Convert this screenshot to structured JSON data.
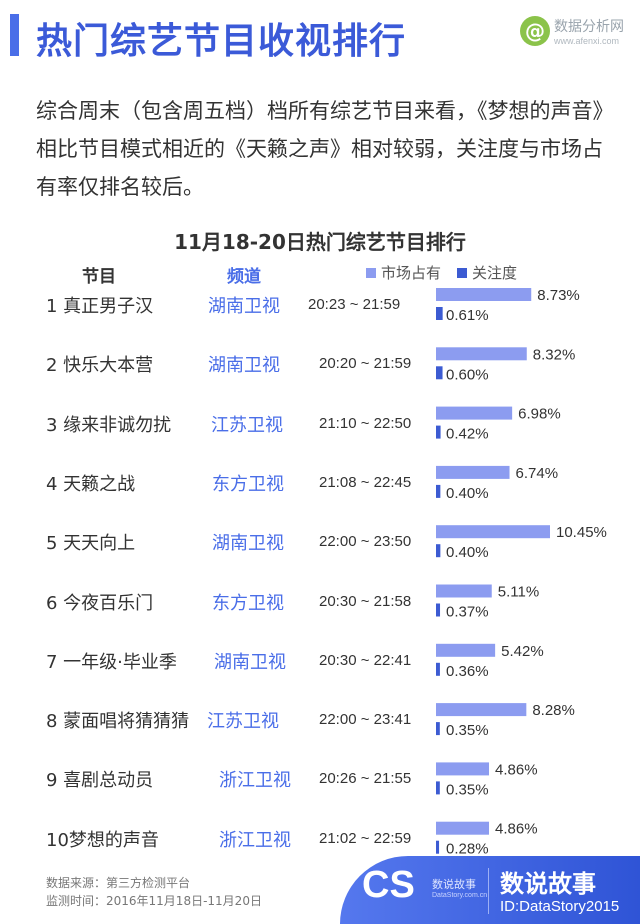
{
  "header": {
    "title": "热门综艺节目收视排行",
    "logo_name": "数据分析网",
    "logo_url": "www.afenxi.com"
  },
  "intro_text": "综合周末（包含周五档）档所有综艺节目来看，《梦想的声音》相比节目模式相近的《天籁之声》相对较弱，关注度与市场占有率仅排名较后。",
  "chart_data": {
    "type": "bar",
    "title": "11月18-20日热门综艺节目排行",
    "column_headers": {
      "program": "节目",
      "channel": "频道"
    },
    "series": [
      {
        "name": "市场占有",
        "color": "#8c9cf0",
        "values": [
          8.73,
          8.32,
          6.98,
          6.74,
          10.45,
          5.11,
          5.42,
          8.28,
          4.86,
          4.86
        ]
      },
      {
        "name": "关注度",
        "color": "#3c5bd2",
        "values": [
          0.61,
          0.6,
          0.42,
          0.4,
          0.4,
          0.37,
          0.36,
          0.35,
          0.35,
          0.28
        ]
      }
    ],
    "rows": [
      {
        "rank_name": "1 真正男子汉",
        "channel": "湖南卫视",
        "time": "20:23 ~ 21:59",
        "share": "8.73%",
        "attention": "0.61%"
      },
      {
        "rank_name": "2 快乐大本营",
        "channel": "湖南卫视",
        "time": "20:20 ~ 21:59",
        "share": "8.32%",
        "attention": "0.60%"
      },
      {
        "rank_name": "3 缘来非诚勿扰",
        "channel": "江苏卫视",
        "time": "21:10 ~ 22:50",
        "share": "6.98%",
        "attention": "0.42%"
      },
      {
        "rank_name": "4 天籁之战",
        "channel": "东方卫视",
        "time": "21:08 ~ 22:45",
        "share": "6.74%",
        "attention": "0.40%"
      },
      {
        "rank_name": "5 天天向上",
        "channel": "湖南卫视",
        "time": "22:00 ~ 23:50",
        "share": "10.45%",
        "attention": "0.40%"
      },
      {
        "rank_name": "6 今夜百乐门",
        "channel": "东方卫视",
        "time": "20:30 ~ 21:58",
        "share": "5.11%",
        "attention": "0.37%"
      },
      {
        "rank_name": "7 一年级·毕业季",
        "channel": "湖南卫视",
        "time": "20:30 ~ 22:41",
        "share": "5.42%",
        "attention": "0.36%"
      },
      {
        "rank_name": "8 蒙面唱将猜猜猜",
        "channel": "江苏卫视",
        "time": "22:00 ~ 23:41",
        "share": "8.28%",
        "attention": "0.35%"
      },
      {
        "rank_name": "9 喜剧总动员",
        "channel": "浙江卫视",
        "time": "20:26 ~ 21:55",
        "share": "4.86%",
        "attention": "0.35%"
      },
      {
        "rank_name": "10梦想的声音",
        "channel": "浙江卫视",
        "time": "21:02 ~ 22:59",
        "share": "4.86%",
        "attention": "0.28%"
      }
    ]
  },
  "footer": {
    "source": "数据来源：第三方检测平台",
    "period": "监测时间：2016年11月18日-11月20日"
  },
  "brand": {
    "cs": "CS",
    "small_cn": "数说故事",
    "small_en": "DataStory.com.cn",
    "name": "数说故事",
    "id": "ID:DataStory2015"
  }
}
